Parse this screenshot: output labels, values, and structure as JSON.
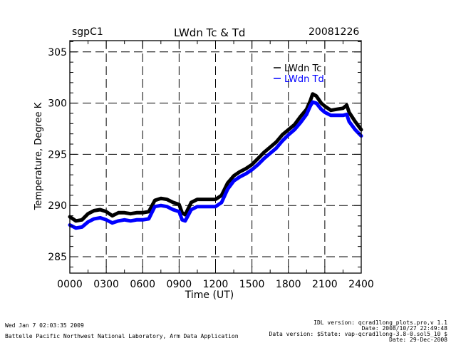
{
  "header": {
    "site": "sgpC1",
    "title": "LWdn Tc & Td",
    "date": "20081226"
  },
  "footer": {
    "left_line1": "Wed Jan  7 02:03:35 2009",
    "left_line2": "Battelle Pacific Northwest National Laboratory, Arm Data Application",
    "right_line1": "IDL version: qcrad1long_plots.pro,v 1.1",
    "right_line2": "Date: 2008/10/27 22:49:48",
    "right_line3": "Data version: $State: vap-qcrad1long-3.8-0.sol5_10 $",
    "right_line4": "Date: 29-Dec-2008"
  },
  "colors": {
    "tc": "#000000",
    "td": "#0000ff",
    "axis": "#000000"
  },
  "chart_data": {
    "type": "line",
    "title": "LWdn Tc & Td",
    "xlabel": "Time (UT)",
    "ylabel": "Temperature, Degree K",
    "xlim": [
      0,
      24
    ],
    "ylim": [
      283.4,
      306.1
    ],
    "x_ticks": [
      0,
      3,
      6,
      9,
      12,
      15,
      18,
      21,
      24
    ],
    "x_tick_labels": [
      "0000",
      "0300",
      "0600",
      "0900",
      "1200",
      "1500",
      "1800",
      "2100",
      "2400"
    ],
    "y_ticks": [
      285,
      290,
      295,
      300,
      305
    ],
    "y_tick_labels": [
      "285",
      "290",
      "295",
      "300",
      "305"
    ],
    "y_minor_step": 1,
    "grid": true,
    "legend": "top-right",
    "series": [
      {
        "name": "LWdn Tc",
        "color": "#000000",
        "x": [
          0,
          0.5,
          1,
          1.5,
          2,
          2.5,
          3,
          3.5,
          4,
          4.5,
          5,
          5.5,
          6,
          6.5,
          7,
          7.5,
          8,
          8.5,
          9,
          9.25,
          9.5,
          10,
          10.5,
          11,
          11.5,
          12,
          12.5,
          13,
          13.5,
          14,
          14.5,
          15,
          15.5,
          16,
          16.5,
          17,
          17.5,
          18,
          18.5,
          19,
          19.5,
          19.8,
          20,
          20.3,
          20.7,
          21,
          21.5,
          22,
          22.5,
          22.8,
          23,
          23.5,
          24
        ],
        "values": [
          288.9,
          288.5,
          288.6,
          289.2,
          289.5,
          289.6,
          289.4,
          289.0,
          289.3,
          289.3,
          289.2,
          289.3,
          289.3,
          289.4,
          290.5,
          290.7,
          290.6,
          290.3,
          290.1,
          289.3,
          289.1,
          290.3,
          290.6,
          290.6,
          290.6,
          290.6,
          291.0,
          292.2,
          292.9,
          293.3,
          293.6,
          294.0,
          294.6,
          295.2,
          295.7,
          296.2,
          296.9,
          297.4,
          297.9,
          298.7,
          299.4,
          300.2,
          300.9,
          300.7,
          300.0,
          299.7,
          299.3,
          299.4,
          299.5,
          299.8,
          299.1,
          298.2,
          297.4
        ]
      },
      {
        "name": "LWdn Td",
        "color": "#0000ff",
        "x": [
          0,
          0.5,
          1,
          1.5,
          2,
          2.5,
          3,
          3.5,
          4,
          4.5,
          5,
          5.5,
          6,
          6.5,
          7,
          7.5,
          8,
          8.5,
          9,
          9.25,
          9.5,
          10,
          10.5,
          11,
          11.5,
          12,
          12.5,
          13,
          13.5,
          14,
          14.5,
          15,
          15.5,
          16,
          16.5,
          17,
          17.5,
          18,
          18.5,
          19,
          19.5,
          19.8,
          20,
          20.3,
          20.7,
          21,
          21.5,
          22,
          22.5,
          22.8,
          23,
          23.5,
          24
        ],
        "values": [
          288.1,
          287.8,
          287.9,
          288.4,
          288.7,
          288.8,
          288.6,
          288.3,
          288.5,
          288.6,
          288.5,
          288.6,
          288.6,
          288.7,
          289.9,
          290.0,
          289.9,
          289.6,
          289.4,
          288.6,
          288.5,
          289.6,
          289.9,
          289.9,
          289.9,
          289.9,
          290.3,
          291.6,
          292.4,
          292.8,
          293.1,
          293.5,
          294.0,
          294.6,
          295.1,
          295.6,
          296.3,
          296.9,
          297.4,
          298.1,
          298.9,
          299.7,
          300.1,
          300.0,
          299.4,
          299.1,
          298.8,
          298.8,
          298.8,
          298.9,
          298.2,
          297.4,
          296.8
        ]
      }
    ]
  }
}
